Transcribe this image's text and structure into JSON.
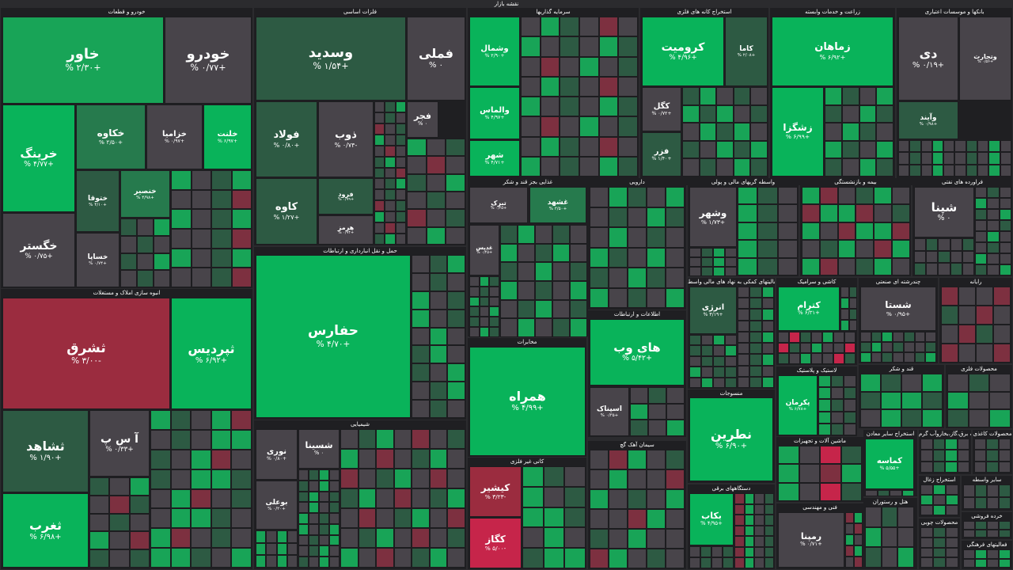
{
  "map": {
    "title": "نقشه بازار"
  },
  "colors": {
    "strong_green": "#09b35a",
    "green": "#18a457",
    "mid_green": "#267a4d",
    "dark_green": "#2d5a43",
    "neutral": "#48444a",
    "mid_red": "#7d3040",
    "red": "#9b2c3f",
    "bright_red": "#c6254a"
  },
  "sectors": [
    {
      "key": "auto",
      "label": "خودرو و قطعات"
    },
    {
      "key": "metals",
      "label": "فلزات اساسی"
    },
    {
      "key": "invest",
      "label": "سرمایه گذاریها"
    },
    {
      "key": "mining",
      "label": "استخراج کانه های فلزی"
    },
    {
      "key": "agri",
      "label": "زراعت و خدمات وابسته"
    },
    {
      "key": "banks",
      "label": "بانکها و موسسات اعتباری"
    },
    {
      "key": "transport",
      "label": "حمل و نقل انبارداری و ارتباطات"
    },
    {
      "key": "food",
      "label": "غذایی بجز قند و شکر"
    },
    {
      "key": "pharma",
      "label": "دارویی"
    },
    {
      "key": "brokerage",
      "label": "واسطه گریهای مالی و پولی"
    },
    {
      "key": "insurance",
      "label": "بیمه و بازنشستگی"
    },
    {
      "key": "refinery",
      "label": "فراورده های نفتی"
    },
    {
      "key": "realestate",
      "label": "انبوه سازی املاک و مستغلات"
    },
    {
      "key": "it",
      "label": "اطلاعات و ارتباطات"
    },
    {
      "key": "aux",
      "label": "فعالیتهای کمکی به نهاد های مالی واسط"
    },
    {
      "key": "tile",
      "label": "کاشی و سرامیک"
    },
    {
      "key": "multi",
      "label": "چندرشته ای صنعتی"
    },
    {
      "key": "computer",
      "label": "رایانه"
    },
    {
      "key": "telecom",
      "label": "مخابرات"
    },
    {
      "key": "chemical",
      "label": "شیمیایی"
    },
    {
      "key": "textile",
      "label": "منسوجات"
    },
    {
      "key": "plastic",
      "label": "لاستیک و پلاستیک"
    },
    {
      "key": "sugar",
      "label": "قند و شکر"
    },
    {
      "key": "metalprod",
      "label": "محصولات فلزی"
    },
    {
      "key": "nonmetal",
      "label": "کانی غیر فلزی"
    },
    {
      "key": "cement",
      "label": "سیمان آهک گچ"
    },
    {
      "key": "electric",
      "label": "دستگاههای برقی"
    },
    {
      "key": "machinery",
      "label": "ماشین آلات و تجهیزات"
    },
    {
      "key": "othermining",
      "label": "استخراج سایر معادن"
    },
    {
      "key": "utility",
      "label": "عرضه برق،گاز،بخاروآب گرم"
    },
    {
      "key": "paper",
      "label": "محصولات کاغذی"
    },
    {
      "key": "engineering",
      "label": "فنی و مهندسی"
    },
    {
      "key": "hotel",
      "label": "هتل و رستوران"
    },
    {
      "key": "coal",
      "label": "استخراج زغال"
    },
    {
      "key": "othertransport",
      "label": "سایر واسطه"
    },
    {
      "key": "wood",
      "label": "محصولات چوبی"
    },
    {
      "key": "retail",
      "label": "خرده فروشی"
    },
    {
      "key": "cultural",
      "label": "فعالیتهای فرهنگی"
    }
  ],
  "tiles": [
    {
      "key": "khavar",
      "name": "خاور",
      "change": "+۲/۳۰ %"
    },
    {
      "key": "khodro",
      "name": "خودرو",
      "change": "+۰/۷۷ %"
    },
    {
      "key": "khringa",
      "name": "خرینگ",
      "change": "+۴/۷۷ %"
    },
    {
      "key": "khakave",
      "name": "خکاوه",
      "change": "+۲/۵۰ %"
    },
    {
      "key": "khazamia",
      "name": "خزامیا",
      "change": "+۰/۹۷ %"
    },
    {
      "key": "khalnat",
      "name": "خلنت",
      "change": "+۶/۹۷ %"
    },
    {
      "key": "khgostar",
      "name": "خگستر",
      "change": "+۰/۷۵ %"
    },
    {
      "key": "khtoqa",
      "name": "ختوقا",
      "change": "+۴/۱۰ %"
    },
    {
      "key": "khansor",
      "name": "خنصیر",
      "change": "+۴/۹۸ %"
    },
    {
      "key": "khsapa",
      "name": "خساپا",
      "change": "+۰/۷۴ %"
    },
    {
      "key": "vsadid",
      "name": "وسدید",
      "change": "+۱/۵۴ %"
    },
    {
      "key": "famli",
      "name": "فملی",
      "change": "۰ %"
    },
    {
      "key": "folad",
      "name": "فولاد",
      "change": "+۰/۸۰ %"
    },
    {
      "key": "zob",
      "name": "ذوب",
      "change": "-۰/۷۴ %"
    },
    {
      "key": "fajr",
      "name": "فجر",
      "change": "۰ %"
    },
    {
      "key": "kave",
      "name": "کاوه",
      "change": "+۱/۲۷ %"
    },
    {
      "key": "forud",
      "name": "فرود",
      "change": "+۰/۹۹ %"
    },
    {
      "key": "harmaz",
      "name": "هرمز",
      "change": "+۰/۹۴ %"
    },
    {
      "key": "vshomal",
      "name": "وشمال",
      "change": "+۲/۹۰ %"
    },
    {
      "key": "valmas",
      "name": "والماس",
      "change": "+۴/۹۷ %"
    },
    {
      "key": "shahr",
      "name": "شهر",
      "change": "+۴/۷۱ %"
    },
    {
      "key": "kromit",
      "name": "کرومیت",
      "change": "+۴/۹۶ %"
    },
    {
      "key": "kama",
      "name": "کاما",
      "change": "+۲/۰۸ %"
    },
    {
      "key": "kegol",
      "name": "کگل",
      "change": "+۰/۷۲ %"
    },
    {
      "key": "fazar",
      "name": "فزر",
      "change": "+۱/۴۰ %"
    },
    {
      "key": "zamahan",
      "name": "زماهان",
      "change": "+۶/۹۲ %"
    },
    {
      "key": "zshagra",
      "name": "زشگزا",
      "change": "+۶/۹۹ %"
    },
    {
      "key": "day",
      "name": "دی",
      "change": "+۰/۱۹ %"
    },
    {
      "key": "vtejarat",
      "name": "وتجارت",
      "change": "+۰/۵۶ %"
    },
    {
      "key": "vpayned",
      "name": "وآیند",
      "change": "+۰/۹۸ %"
    },
    {
      "key": "sharq",
      "name": "ثشرق",
      "change": "-۳/۰۰ %"
    },
    {
      "key": "sparadis",
      "name": "ثپردیس",
      "change": "+۶/۹۲ %"
    },
    {
      "key": "hafars",
      "name": "حفارس",
      "change": "+۴/۷۰ %"
    },
    {
      "key": "hamrah",
      "name": "همراه",
      "change": "+۴/۹۹ %"
    },
    {
      "key": "hayweb",
      "name": "های وب",
      "change": "+۵/۴۲ %"
    },
    {
      "key": "natrin",
      "name": "نطرین",
      "change": "+۶/۹۰ %"
    },
    {
      "key": "shpana",
      "name": "شپنا",
      "change": "۰ %"
    },
    {
      "key": "vshahr",
      "name": "وشهر",
      "change": "+۱/۷۳ %"
    },
    {
      "key": "ketram",
      "name": "کترام",
      "change": "+۶/۳۱ %"
    },
    {
      "key": "shasta",
      "name": "شستا",
      "change": "+۰/۹۵ %"
    },
    {
      "key": "shahed",
      "name": "ثشاهد",
      "change": "+۱/۹۰ %"
    },
    {
      "key": "sap",
      "name": "آ س پ",
      "change": "+۰/۳۳ %"
    },
    {
      "key": "sgharb",
      "name": "ثغرب",
      "change": "+۶/۹۸ %"
    },
    {
      "key": "keshir",
      "name": "کیشیر",
      "change": "-۳/۲۳ %"
    },
    {
      "key": "kegaz",
      "name": "کگاز",
      "change": "-۵/۰۰ %"
    },
    {
      "key": "bekab",
      "name": "بکاب",
      "change": "+۴/۹۵ %"
    },
    {
      "key": "ramina",
      "name": "رمپنا",
      "change": "+۰/۷۱ %"
    },
    {
      "key": "kamase",
      "name": "کماسه",
      "change": "+۵/۵۵ %"
    },
    {
      "key": "ghasdir",
      "name": "غدیس",
      "change": "+۰/۴۵ %"
    },
    {
      "key": "ghshahd",
      "name": "غشهد",
      "change": "+۳/۵۰ %"
    },
    {
      "key": "tabrak",
      "name": "تبرک",
      "change": "+۰/۴۵ %"
    },
    {
      "key": "shasina",
      "name": "شسینا",
      "change": "۰ %"
    },
    {
      "key": "nouri",
      "name": "نوری",
      "change": "+۰/۸۰ %"
    },
    {
      "key": "boali",
      "name": "بوعلی",
      "change": "+۰/۲۰ %"
    },
    {
      "key": "anrji",
      "name": "انرژی",
      "change": "+۳/۱۹ %"
    },
    {
      "key": "pakrman",
      "name": "پکرمان",
      "change": "+۶/۷۸ %"
    },
    {
      "key": "asnak",
      "name": "اسپناک",
      "change": "+۰/۳۵ %"
    }
  ]
}
